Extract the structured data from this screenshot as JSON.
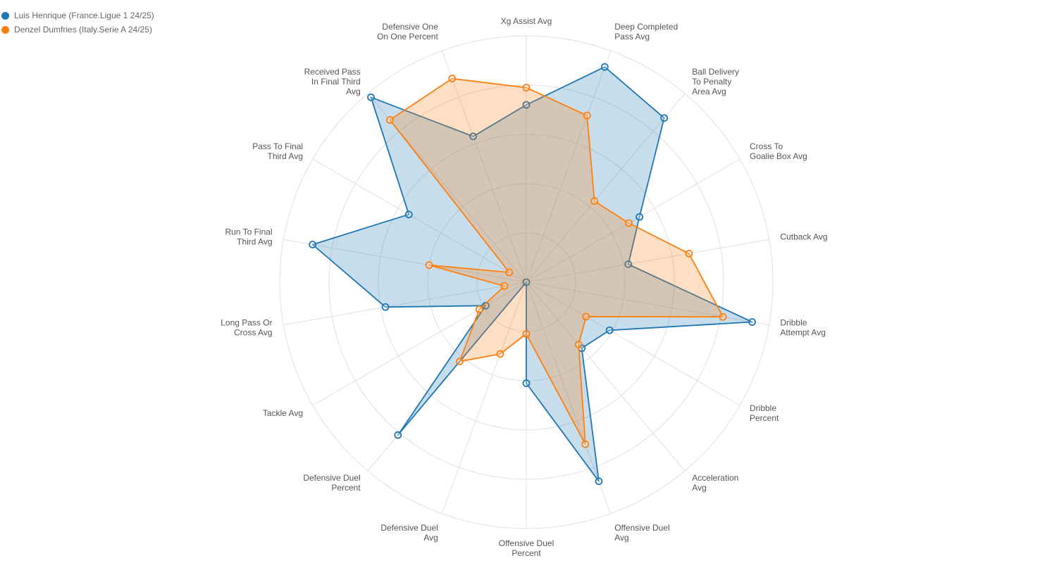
{
  "chart_data": {
    "type": "radar",
    "title": "",
    "r_range": [
      0,
      1
    ],
    "grid_rings": 5,
    "grid": true,
    "legend_placement": "top-left",
    "axes": [
      [
        "Xg Assist Avg"
      ],
      [
        "Deep Completed",
        "Pass Avg"
      ],
      [
        "Ball Delivery",
        "To Penalty",
        "Area Avg"
      ],
      [
        "Cross To",
        "Goalie Box Avg"
      ],
      [
        "Cutback Avg"
      ],
      [
        "Dribble",
        "Attempt Avg"
      ],
      [
        "Dribble",
        "Percent"
      ],
      [
        "Acceleration",
        "Avg"
      ],
      [
        "Offensive Duel",
        "Avg"
      ],
      [
        "Offensive Duel",
        "Percent"
      ],
      [
        "Defensive Duel",
        "Avg"
      ],
      [
        "Defensive Duel",
        "Percent"
      ],
      [
        "Tackle Avg"
      ],
      [
        "Long Pass Or",
        "Cross Avg"
      ],
      [
        "Run To Final",
        "Third Avg"
      ],
      [
        "Pass To Final",
        "Third Avg"
      ],
      [
        "Received Pass",
        "In Final Third",
        "Avg"
      ],
      [
        "Defensive One",
        "On One Percent"
      ]
    ],
    "series": [
      {
        "name": "Luis Henrique (France.Ligue 1 24/25)",
        "color": "#1f77b4",
        "values": [
          0.72,
          0.93,
          0.87,
          0.53,
          0.42,
          0.93,
          0.39,
          0.35,
          0.86,
          0.41,
          0.0,
          0.81,
          0.19,
          0.58,
          0.88,
          0.55,
          0.98,
          0.63
        ]
      },
      {
        "name": "Denzel Dumfries (Italy.Serie A 24/25)",
        "color": "#ff7f0e",
        "values": [
          0.79,
          0.72,
          0.43,
          0.48,
          0.67,
          0.81,
          0.28,
          0.33,
          0.7,
          0.21,
          0.31,
          0.42,
          0.22,
          0.09,
          0.4,
          0.08,
          0.86,
          0.88
        ]
      }
    ]
  }
}
